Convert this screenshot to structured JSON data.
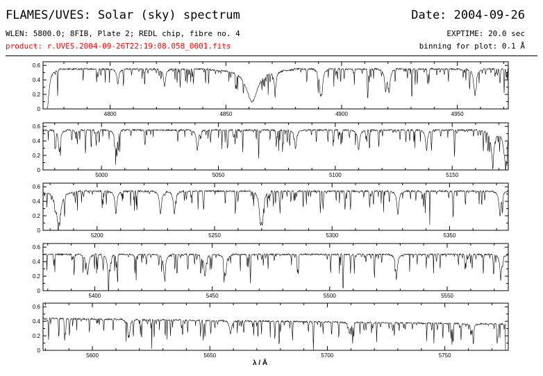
{
  "header": {
    "title": "FLAMES/UVES: Solar (sky) spectrum",
    "date": "Date: 2004-09-26",
    "setup": "WLEN: 5800.0; 8FIB, Plate 2; REDL chip, fibre no. 4",
    "exptime": "EXPTIME: 20.0 sec",
    "product": "product: r.UVES.2004-09-26T22:19:08.058_0001.fits",
    "binning": "binning for plot: 0.1 Å"
  },
  "colors": {
    "text": "#000000",
    "product": "#ff0000",
    "line": "#000000"
  },
  "chart_data": [
    {
      "type": "line",
      "xlim": [
        4771,
        4972
      ],
      "ylim": [
        0,
        0.65
      ],
      "x_ticks": [
        4800,
        4850,
        4900,
        4950
      ],
      "y_ticks": [
        "0",
        "0.2",
        "0.4",
        "0.6"
      ],
      "continuum": 0.55,
      "lines": [
        [
          4772.8,
          0.55,
          0.9
        ],
        [
          4803.3,
          0.2,
          0.5
        ],
        [
          4823.5,
          0.25,
          0.5
        ],
        [
          4861.3,
          0.45,
          3.0
        ],
        [
          4871.3,
          0.25,
          0.5
        ],
        [
          4890.8,
          0.28,
          0.5
        ],
        [
          4891.5,
          0.25,
          0.5
        ],
        [
          4919.0,
          0.28,
          0.5
        ],
        [
          4920.5,
          0.3,
          0.5
        ],
        [
          4957.6,
          0.35,
          0.6
        ]
      ],
      "edges": {
        "start_gap": 1.5
      }
    },
    {
      "type": "line",
      "xlim": [
        4975,
        5174
      ],
      "ylim": [
        0,
        0.65
      ],
      "x_ticks": [
        5000,
        5050,
        5100,
        5150
      ],
      "y_ticks": [
        "0",
        "0.2",
        "0.4",
        "0.6"
      ],
      "continuum": 0.55,
      "lines": [
        [
          4982,
          0.3,
          0.5
        ],
        [
          5006,
          0.25,
          0.5
        ],
        [
          5041,
          0.28,
          0.5
        ],
        [
          5083,
          0.25,
          0.5
        ],
        [
          5110,
          0.28,
          0.5
        ],
        [
          5139,
          0.25,
          0.5
        ],
        [
          5167.3,
          0.4,
          0.8
        ],
        [
          5172.7,
          0.42,
          0.9
        ]
      ],
      "edges": {}
    },
    {
      "type": "line",
      "xlim": [
        5177,
        5375
      ],
      "ylim": [
        0,
        0.65
      ],
      "x_ticks": [
        5200,
        5250,
        5300,
        5350
      ],
      "y_ticks": [
        "0",
        "0.2",
        "0.4",
        "0.6"
      ],
      "continuum": 0.54,
      "lines": [
        [
          5183.6,
          0.45,
          1.2
        ],
        [
          5208,
          0.3,
          0.5
        ],
        [
          5227,
          0.32,
          0.5
        ],
        [
          5232.9,
          0.32,
          0.5
        ],
        [
          5269.5,
          0.38,
          0.6
        ],
        [
          5270.4,
          0.34,
          0.5
        ],
        [
          5328,
          0.32,
          0.5
        ],
        [
          5371.5,
          0.35,
          0.5
        ]
      ],
      "edges": {}
    },
    {
      "type": "line",
      "xlim": [
        5378,
        5576
      ],
      "ylim": [
        0,
        0.65
      ],
      "x_ticks": [
        5400,
        5450,
        5500,
        5550
      ],
      "y_ticks": [
        "0",
        "0.2",
        "0.4",
        "0.6"
      ],
      "continuum": 0.5,
      "lines": [
        [
          5397,
          0.28,
          0.5
        ],
        [
          5405.8,
          0.3,
          0.5
        ],
        [
          5429.7,
          0.32,
          0.5
        ],
        [
          5446.9,
          0.3,
          0.5
        ],
        [
          5455.6,
          0.3,
          0.5
        ],
        [
          5528.4,
          0.3,
          0.5
        ],
        [
          5572.8,
          0.3,
          0.5
        ]
      ],
      "edges": {}
    },
    {
      "type": "line",
      "xlim": [
        5579,
        5777
      ],
      "ylim": [
        0,
        0.65
      ],
      "x_ticks": [
        5600,
        5650,
        5700,
        5750
      ],
      "y_ticks": [
        "0",
        "0.2",
        "0.4",
        "0.6"
      ],
      "continuum": 0.44,
      "slope": -0.08,
      "lines": [
        [
          5615.6,
          0.2,
          0.5
        ],
        [
          5658.8,
          0.18,
          0.5
        ],
        [
          5709.4,
          0.15,
          0.5
        ],
        [
          5762,
          0.12,
          0.5
        ]
      ],
      "edges": {
        "end_gap": 1.2
      },
      "xlabel": "λ / Å"
    }
  ]
}
